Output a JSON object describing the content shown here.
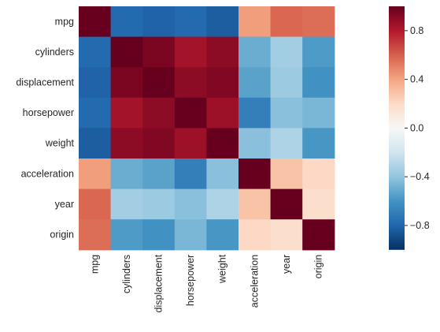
{
  "chart_data": {
    "type": "heatmap",
    "title": "",
    "row_labels": [
      "mpg",
      "cylinders",
      "displacement",
      "horsepower",
      "weight",
      "acceleration",
      "year",
      "origin"
    ],
    "col_labels": [
      "mpg",
      "cylinders",
      "displacement",
      "horsepower",
      "weight",
      "acceleration",
      "year",
      "origin"
    ],
    "values": [
      [
        1.0,
        -0.78,
        -0.81,
        -0.78,
        -0.83,
        0.42,
        0.58,
        0.56
      ],
      [
        -0.78,
        1.0,
        0.95,
        0.84,
        0.9,
        -0.5,
        -0.35,
        -0.57
      ],
      [
        -0.81,
        0.95,
        1.0,
        0.9,
        0.93,
        -0.54,
        -0.37,
        -0.61
      ],
      [
        -0.78,
        0.84,
        0.9,
        1.0,
        0.86,
        -0.69,
        -0.42,
        -0.46
      ],
      [
        -0.83,
        0.9,
        0.93,
        0.86,
        1.0,
        -0.42,
        -0.31,
        -0.59
      ],
      [
        0.42,
        -0.5,
        -0.54,
        -0.69,
        -0.42,
        1.0,
        0.29,
        0.21
      ],
      [
        0.58,
        -0.35,
        -0.37,
        -0.42,
        -0.31,
        0.29,
        1.0,
        0.18
      ],
      [
        0.56,
        -0.57,
        -0.61,
        -0.46,
        -0.59,
        0.21,
        0.18,
        1.0
      ]
    ],
    "vmin": -1.0,
    "vmax": 1.0,
    "colormap": "RdBu_r",
    "colorbar": {
      "ticks": [
        0.8,
        0.4,
        0.0,
        -0.4,
        -0.8
      ],
      "tick_labels": [
        "0.8",
        "0.4",
        "0.0",
        "−0.4",
        "−0.8"
      ]
    },
    "grid": false,
    "legend": "colorbar-right"
  }
}
